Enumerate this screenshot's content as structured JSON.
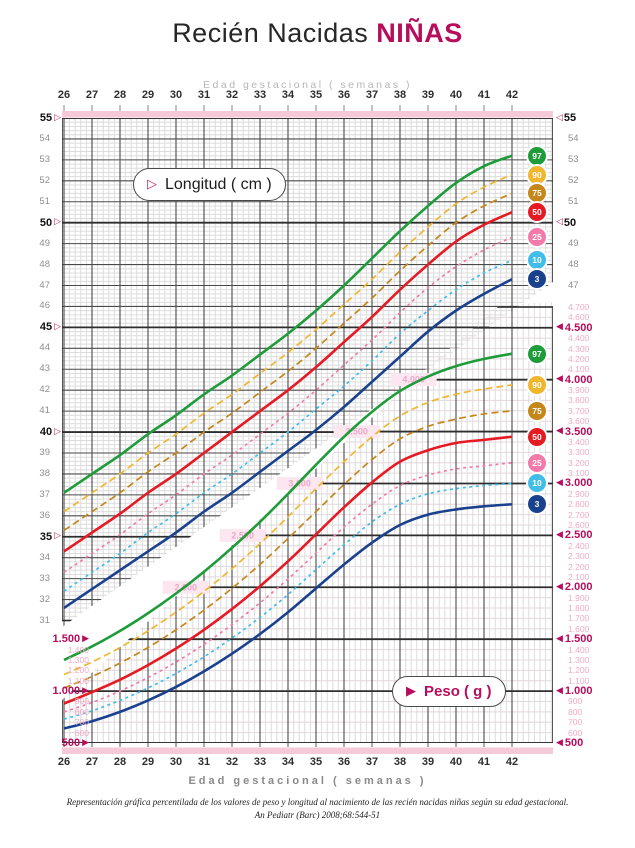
{
  "title": {
    "prefix": "Recién Nacidas",
    "highlight": "NIÑAS"
  },
  "top_axis": {
    "caption": "Edad gestacional ( semanas )"
  },
  "bottom_axis": {
    "caption": "Edad gestacional ( semanas )"
  },
  "weeks": [
    26,
    27,
    28,
    29,
    30,
    31,
    32,
    33,
    34,
    35,
    36,
    37,
    38,
    39,
    40,
    41,
    42
  ],
  "legend": {
    "length_label": "Longitud ( cm )",
    "weight_label": "Peso ( g )"
  },
  "length_axis": {
    "min": 31,
    "max": 55,
    "step": 1,
    "bold_every": 5,
    "right_min": 47,
    "unit": "cm"
  },
  "weight_axis": {
    "min": 500,
    "max_right": 4700,
    "max_left": 1500,
    "step": 100,
    "bold_every": 500,
    "unit": "g"
  },
  "watermark_labels": [
    "2.000",
    "2.500",
    "3.000",
    "3.500",
    "4.000"
  ],
  "percentiles": [
    {
      "label": "97",
      "color": "#1f9c3a",
      "style": "solid",
      "width": 2.6
    },
    {
      "label": "90",
      "color": "#f0b72e",
      "style": "dashed",
      "width": 1.7
    },
    {
      "label": "75",
      "color": "#c5861b",
      "style": "dashed",
      "width": 1.7
    },
    {
      "label": "50",
      "color": "#e51b24",
      "style": "solid",
      "width": 2.6
    },
    {
      "label": "25",
      "color": "#f37aab",
      "style": "dotted",
      "width": 1.7
    },
    {
      "label": "10",
      "color": "#41bde8",
      "style": "dotted",
      "width": 1.7
    },
    {
      "label": "3",
      "color": "#1a418e",
      "style": "solid",
      "width": 2.6
    }
  ],
  "footer": {
    "line1": "Representación gráfica percentilada de los valores de peso y longitud al nacimiento de las recién nacidas niñas según su edad gestacional.",
    "line2": "An Pediatr (Barc) 2008;68:544-51"
  },
  "colors": {
    "accent_magenta": "#b60d5c",
    "triangle_outline": "#c42565",
    "pink_band": "#f6c9d9",
    "minor_label_pink": "#f0aac7",
    "watermark_bg": "#fce6f0",
    "watermark_text": "#eda9c9",
    "grid_minor": "#dcdcdc",
    "grid_major": "#4a4a4a",
    "label_gray": "#8f8f8f"
  },
  "chart_data": [
    {
      "type": "line",
      "title": "Longitud ( cm )",
      "xlabel": "Edad gestacional ( semanas )",
      "ylabel": "Longitud (cm)",
      "ylim": [
        31,
        55
      ],
      "grid": true,
      "legend_position": "right-badges",
      "x": [
        26,
        27,
        28,
        29,
        30,
        31,
        32,
        33,
        34,
        35,
        36,
        37,
        38,
        39,
        40,
        41,
        42
      ],
      "series": [
        {
          "name": "P97",
          "values": [
            37.1,
            38.0,
            38.9,
            39.9,
            40.8,
            41.8,
            42.7,
            43.7,
            44.7,
            45.8,
            47.0,
            48.3,
            49.6,
            50.8,
            51.9,
            52.7,
            53.2
          ]
        },
        {
          "name": "P90",
          "values": [
            36.2,
            37.1,
            38.0,
            39.0,
            39.9,
            40.9,
            41.8,
            42.8,
            43.8,
            44.9,
            46.1,
            47.3,
            48.6,
            49.8,
            50.9,
            51.7,
            52.3
          ]
        },
        {
          "name": "P75",
          "values": [
            35.3,
            36.2,
            37.1,
            38.1,
            39.0,
            40.0,
            40.9,
            41.9,
            42.9,
            44.0,
            45.2,
            46.4,
            47.7,
            48.9,
            50.0,
            50.8,
            51.4
          ]
        },
        {
          "name": "P50",
          "values": [
            34.3,
            35.2,
            36.1,
            37.1,
            38.0,
            39.0,
            40.0,
            41.0,
            42.0,
            43.1,
            44.3,
            45.5,
            46.8,
            48.0,
            49.1,
            49.9,
            50.5
          ]
        },
        {
          "name": "P25",
          "values": [
            33.3,
            34.2,
            35.1,
            36.1,
            37.0,
            38.0,
            38.9,
            39.9,
            40.9,
            42.0,
            43.2,
            44.4,
            45.7,
            46.9,
            47.9,
            48.7,
            49.3
          ]
        },
        {
          "name": "P10",
          "values": [
            32.4,
            33.3,
            34.2,
            35.2,
            36.1,
            37.1,
            38.0,
            39.0,
            40.0,
            41.1,
            42.2,
            43.4,
            44.7,
            45.8,
            46.8,
            47.6,
            48.2
          ]
        },
        {
          "name": "P3",
          "values": [
            31.6,
            32.5,
            33.4,
            34.3,
            35.2,
            36.2,
            37.1,
            38.1,
            39.1,
            40.1,
            41.2,
            42.4,
            43.6,
            44.8,
            45.8,
            46.6,
            47.3
          ]
        }
      ]
    },
    {
      "type": "line",
      "title": "Peso ( g )",
      "xlabel": "Edad gestacional ( semanas )",
      "ylabel": "Peso (g)",
      "ylim": [
        500,
        4700
      ],
      "grid": true,
      "legend_position": "right-badges",
      "x": [
        26,
        27,
        28,
        29,
        30,
        31,
        32,
        33,
        34,
        35,
        36,
        37,
        38,
        39,
        40,
        41,
        42
      ],
      "series": [
        {
          "name": "P97",
          "values": [
            1300,
            1430,
            1580,
            1750,
            1940,
            2150,
            2380,
            2630,
            2900,
            3180,
            3450,
            3690,
            3890,
            4030,
            4130,
            4200,
            4250
          ]
        },
        {
          "name": "P90",
          "values": [
            1160,
            1280,
            1420,
            1580,
            1760,
            1960,
            2180,
            2420,
            2680,
            2950,
            3210,
            3450,
            3650,
            3780,
            3860,
            3910,
            3950
          ]
        },
        {
          "name": "P75",
          "values": [
            1030,
            1140,
            1270,
            1420,
            1590,
            1780,
            1990,
            2220,
            2470,
            2730,
            2990,
            3230,
            3430,
            3550,
            3620,
            3670,
            3700
          ]
        },
        {
          "name": "P50",
          "values": [
            880,
            990,
            1110,
            1250,
            1410,
            1590,
            1790,
            2010,
            2250,
            2510,
            2770,
            3010,
            3210,
            3320,
            3390,
            3420,
            3450
          ]
        },
        {
          "name": "P25",
          "values": [
            800,
            890,
            1000,
            1130,
            1280,
            1450,
            1640,
            1850,
            2080,
            2330,
            2580,
            2800,
            2980,
            3080,
            3140,
            3170,
            3200
          ]
        },
        {
          "name": "P10",
          "values": [
            730,
            810,
            910,
            1030,
            1170,
            1330,
            1510,
            1710,
            1930,
            2170,
            2410,
            2630,
            2800,
            2900,
            2950,
            2980,
            3000
          ]
        },
        {
          "name": "P3",
          "values": [
            640,
            710,
            800,
            910,
            1040,
            1190,
            1360,
            1550,
            1760,
            1990,
            2220,
            2430,
            2600,
            2700,
            2750,
            2780,
            2800
          ]
        }
      ]
    }
  ]
}
